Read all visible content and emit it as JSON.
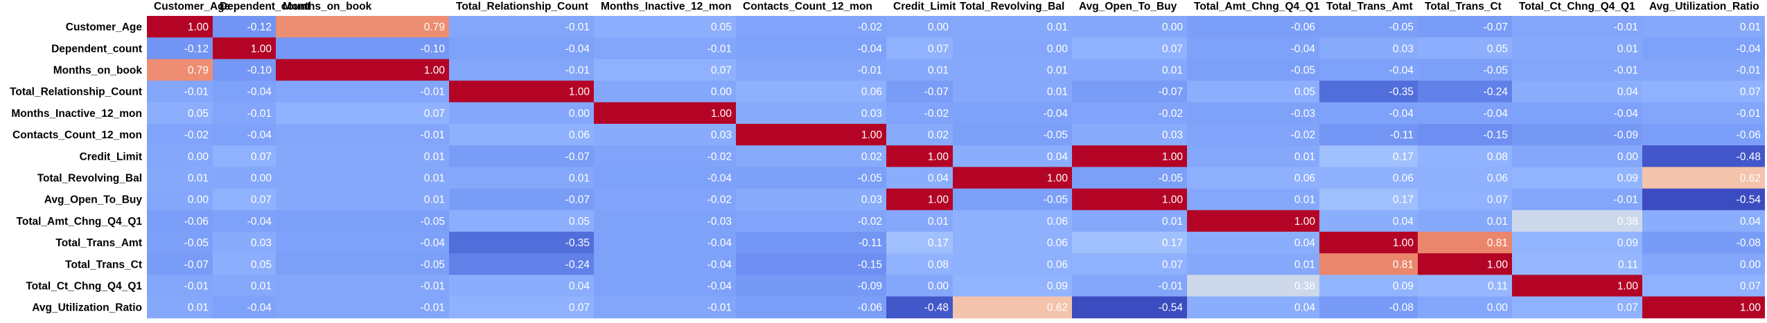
{
  "chart_data": {
    "type": "heatmap",
    "columns": [
      "Customer_Age",
      "Dependent_count",
      "Months_on_book",
      "Total_Relationship_Count",
      "Months_Inactive_12_mon",
      "Contacts_Count_12_mon",
      "Credit_Limit",
      "Total_Revolving_Bal",
      "Avg_Open_To_Buy",
      "Total_Amt_Chng_Q4_Q1",
      "Total_Trans_Amt",
      "Total_Trans_Ct",
      "Total_Ct_Chng_Q4_Q1",
      "Avg_Utilization_Ratio"
    ],
    "rows": [
      "Customer_Age",
      "Dependent_count",
      "Months_on_book",
      "Total_Relationship_Count",
      "Months_Inactive_12_mon",
      "Contacts_Count_12_mon",
      "Credit_Limit",
      "Total_Revolving_Bal",
      "Avg_Open_To_Buy",
      "Total_Amt_Chng_Q4_Q1",
      "Total_Trans_Amt",
      "Total_Trans_Ct",
      "Total_Ct_Chng_Q4_Q1",
      "Avg_Utilization_Ratio"
    ],
    "values": [
      [
        1.0,
        -0.12,
        0.79,
        -0.01,
        0.05,
        -0.02,
        0.0,
        0.01,
        0.0,
        -0.06,
        -0.05,
        -0.07,
        -0.01,
        0.01
      ],
      [
        -0.12,
        1.0,
        -0.1,
        -0.04,
        -0.01,
        -0.04,
        0.07,
        -0.0,
        0.07,
        -0.04,
        0.03,
        0.05,
        0.01,
        -0.04
      ],
      [
        0.79,
        -0.1,
        1.0,
        -0.01,
        0.07,
        -0.01,
        0.01,
        0.01,
        0.01,
        -0.05,
        -0.04,
        -0.05,
        -0.01,
        -0.01
      ],
      [
        -0.01,
        -0.04,
        -0.01,
        1.0,
        -0.0,
        0.06,
        -0.07,
        0.01,
        -0.07,
        0.05,
        -0.35,
        -0.24,
        0.04,
        0.07
      ],
      [
        0.05,
        -0.01,
        0.07,
        -0.0,
        1.0,
        0.03,
        -0.02,
        -0.04,
        -0.02,
        -0.03,
        -0.04,
        -0.04,
        -0.04,
        -0.01
      ],
      [
        -0.02,
        -0.04,
        -0.01,
        0.06,
        0.03,
        1.0,
        0.02,
        -0.05,
        0.03,
        -0.02,
        -0.11,
        -0.15,
        -0.09,
        -0.06
      ],
      [
        0.0,
        0.07,
        0.01,
        -0.07,
        -0.02,
        0.02,
        1.0,
        0.04,
        1.0,
        0.01,
        0.17,
        0.08,
        -0.0,
        -0.48
      ],
      [
        0.01,
        -0.0,
        0.01,
        0.01,
        -0.04,
        -0.05,
        0.04,
        1.0,
        -0.05,
        0.06,
        0.06,
        0.06,
        0.09,
        0.62
      ],
      [
        0.0,
        0.07,
        0.01,
        -0.07,
        -0.02,
        0.03,
        1.0,
        -0.05,
        1.0,
        0.01,
        0.17,
        0.07,
        -0.01,
        -0.54
      ],
      [
        -0.06,
        -0.04,
        -0.05,
        0.05,
        -0.03,
        -0.02,
        0.01,
        0.06,
        0.01,
        1.0,
        0.04,
        0.01,
        0.38,
        0.04
      ],
      [
        -0.05,
        0.03,
        -0.04,
        -0.35,
        -0.04,
        -0.11,
        0.17,
        0.06,
        0.17,
        0.04,
        1.0,
        0.81,
        0.09,
        -0.08
      ],
      [
        -0.07,
        0.05,
        -0.05,
        -0.24,
        -0.04,
        -0.15,
        0.08,
        0.06,
        0.07,
        0.01,
        0.81,
        1.0,
        0.11,
        0.0
      ],
      [
        -0.01,
        0.01,
        -0.01,
        0.04,
        -0.04,
        -0.09,
        -0.0,
        0.09,
        -0.01,
        0.38,
        0.09,
        0.11,
        1.0,
        0.07
      ],
      [
        0.01,
        -0.04,
        -0.01,
        0.07,
        -0.01,
        -0.06,
        -0.48,
        0.62,
        -0.54,
        0.04,
        -0.08,
        0.0,
        0.07,
        1.0
      ]
    ],
    "value_format": "0.00",
    "colormap": {
      "name": "coolwarm",
      "low_color": "#3b4cc0",
      "mid_color": "#dddddd",
      "high_color": "#b40426"
    },
    "legend": "none"
  }
}
